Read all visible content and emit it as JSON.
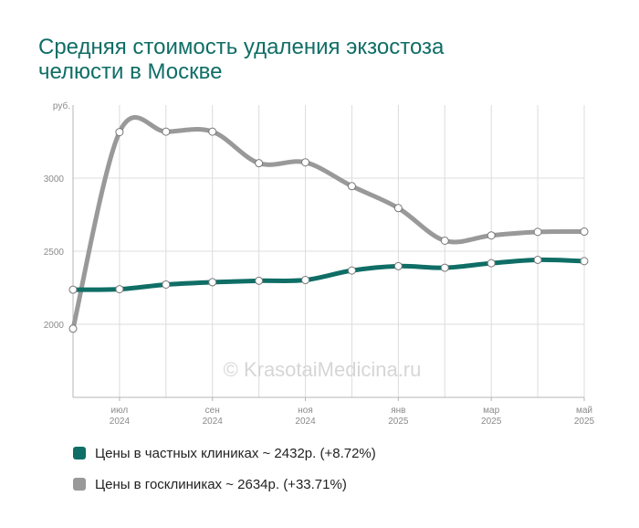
{
  "title": {
    "line1": "Средняя стоимость удаления экзостоза",
    "line2": "челюсти в Москве"
  },
  "watermark": "© KrasotaiMedicina.ru",
  "chart_data": {
    "type": "line",
    "y_unit_label": "руб.",
    "ylim": [
      1500,
      3500
    ],
    "y_ticks": [
      2000,
      2500,
      3000
    ],
    "x_tick_labels": [
      {
        "month": "июл",
        "year": "2024"
      },
      {
        "month": "сен",
        "year": "2024"
      },
      {
        "month": "ноя",
        "year": "2024"
      },
      {
        "month": "янв",
        "year": "2025"
      },
      {
        "month": "мар",
        "year": "2025"
      },
      {
        "month": "май",
        "year": "2025"
      }
    ],
    "x": [
      "2024-06",
      "2024-07",
      "2024-08",
      "2024-09",
      "2024-10",
      "2024-11",
      "2024-12",
      "2025-01",
      "2025-02",
      "2025-03",
      "2025-04",
      "2025-05"
    ],
    "grid": true,
    "legend_position": "bottom",
    "series": [
      {
        "name": "Цены в частных клиниках ~ 2432р. (+8.72%)",
        "color": "#0f6e66",
        "values": [
          2237,
          2240,
          2272,
          2288,
          2298,
          2303,
          2368,
          2398,
          2387,
          2418,
          2441,
          2432
        ]
      },
      {
        "name": "Цены в госклиниках ~ 2634р. (+33.71%)",
        "color": "#999999",
        "values": [
          1970,
          3315,
          3318,
          3318,
          3102,
          3108,
          2945,
          2795,
          2572,
          2608,
          2632,
          2634
        ]
      }
    ]
  }
}
